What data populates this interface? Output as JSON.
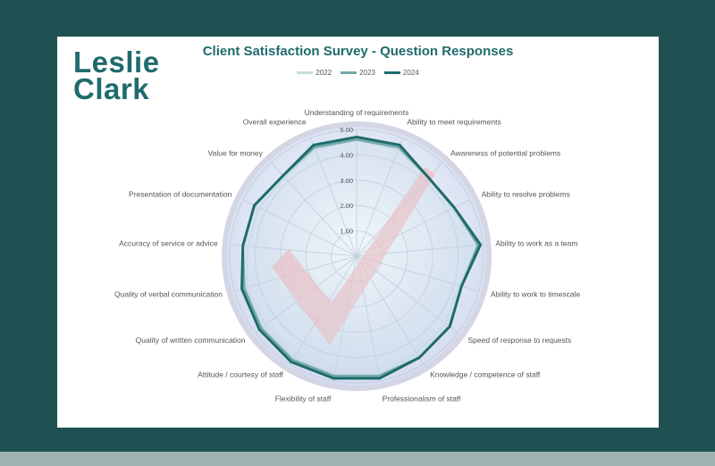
{
  "logo": {
    "line1": "Leslie",
    "line2": "Clark"
  },
  "colors": {
    "background": "#1f5152",
    "card": "#ffffff",
    "accent": "#1f6b6c",
    "series_2022": "#c9dde2",
    "series_2023": "#74a9ae",
    "series_2024": "#1f6b6c",
    "check_mark": "#f4a9a9",
    "rim": "#d4d6e6"
  },
  "chart_data": {
    "type": "radar",
    "title": "Client Satisfaction Survey - Question Responses",
    "categories": [
      "Understanding of requirements",
      "Ability to meet requirements",
      "Awareness of potential problems",
      "Ability to resolve problems",
      "Ability to work as a team",
      "Ability to work to timescale",
      "Speed of response to requests",
      "Knowledge / competence of staff",
      "Professionalism of staff",
      "Flexibility of staff",
      "Attitude / courtesy of staff",
      "Quality of written communication",
      "Quality of verbal communication",
      "Accuracy of service or advice",
      "Presentation of documentation",
      "Value for money",
      "Overall experience"
    ],
    "series": [
      {
        "name": "2022",
        "values": [
          4.6,
          4.5,
          4.2,
          4.2,
          4.8,
          4.2,
          4.4,
          4.5,
          4.7,
          4.7,
          4.7,
          4.5,
          4.5,
          4.3,
          4.3,
          4.2,
          4.5
        ]
      },
      {
        "name": "2023",
        "values": [
          4.6,
          4.6,
          4.2,
          4.3,
          4.8,
          4.3,
          4.6,
          4.7,
          4.8,
          4.8,
          4.8,
          4.7,
          4.6,
          4.5,
          4.5,
          4.3,
          4.6
        ]
      },
      {
        "name": "2024",
        "values": [
          4.7,
          4.7,
          4.2,
          4.3,
          4.9,
          4.3,
          4.6,
          4.7,
          4.9,
          4.9,
          4.9,
          4.8,
          4.7,
          4.5,
          4.5,
          4.3,
          4.7
        ]
      }
    ],
    "rlim": [
      0,
      5
    ],
    "ticks": [
      "1.00",
      "2.00",
      "3.00",
      "4.00",
      "5.00"
    ],
    "grid": true,
    "legend": "top"
  }
}
